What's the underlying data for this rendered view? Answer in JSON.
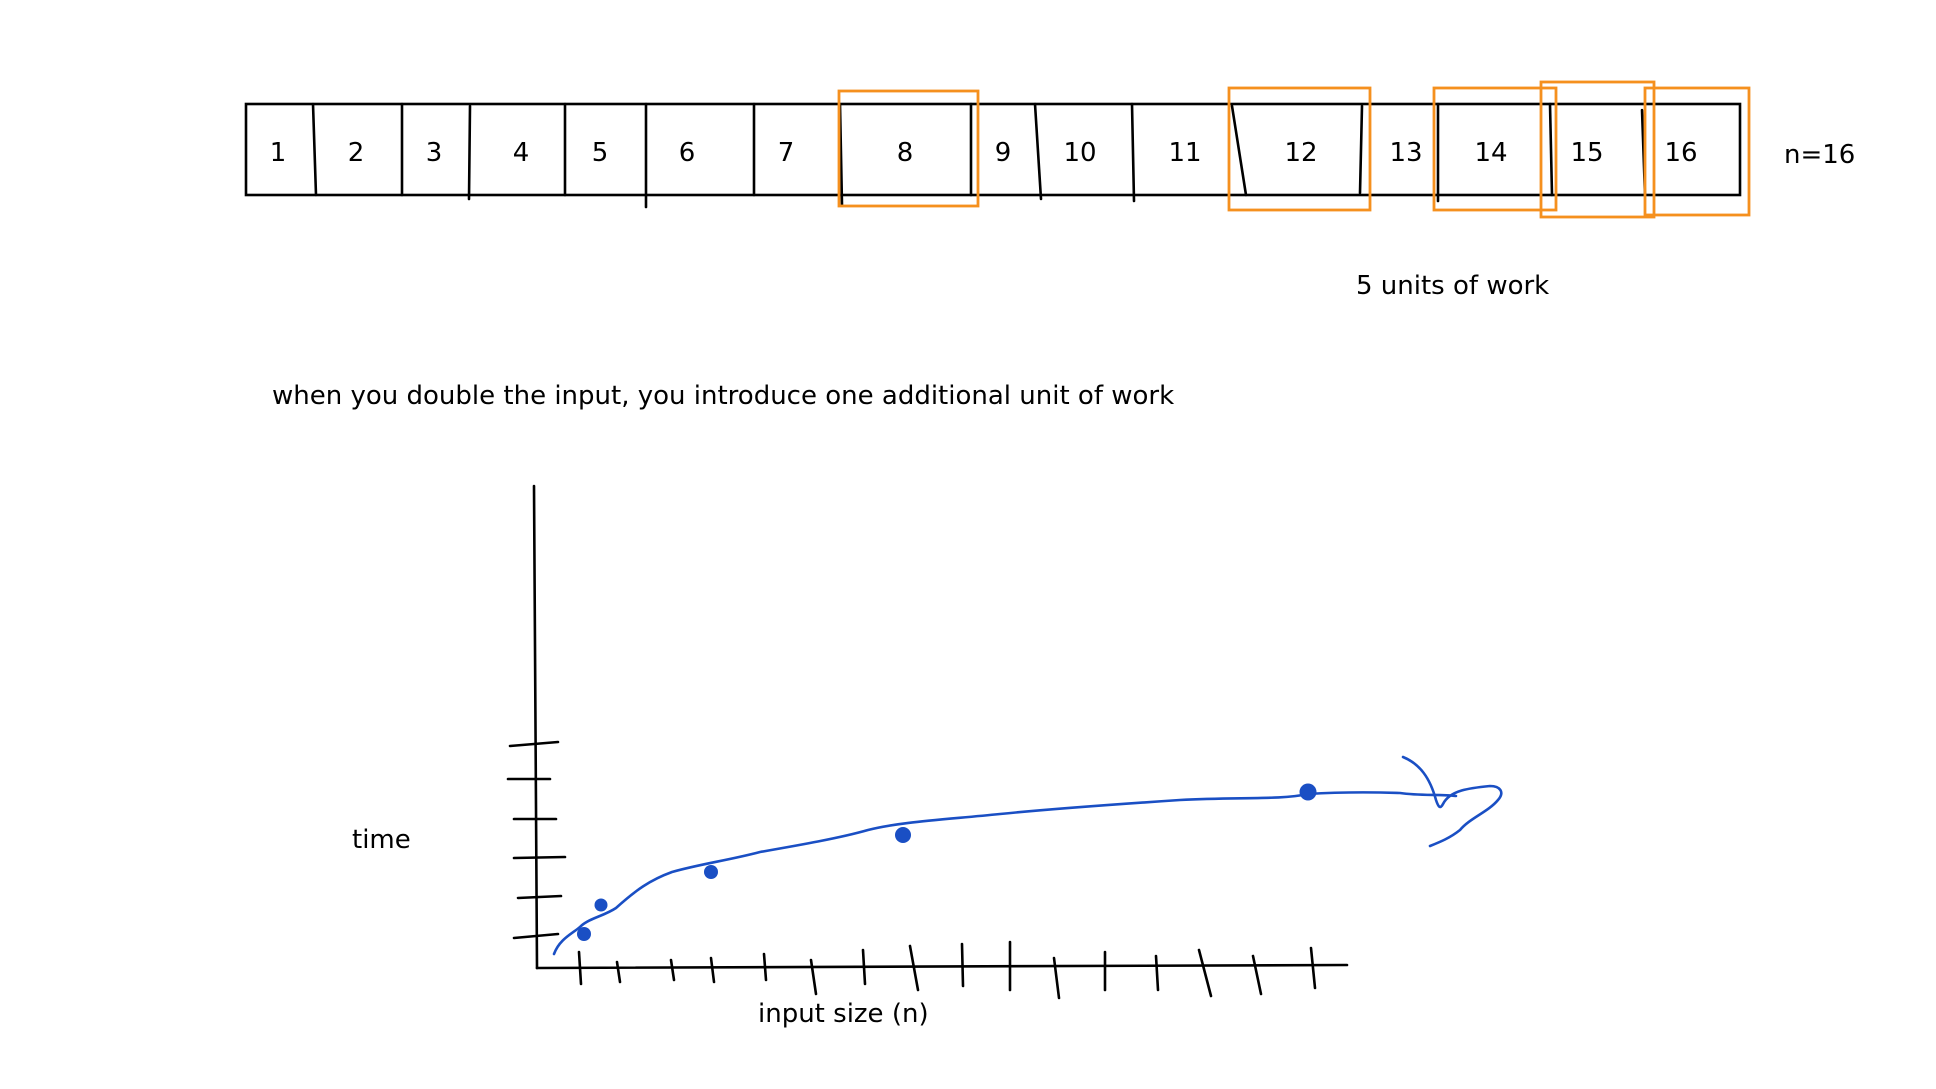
{
  "array": {
    "cells": [
      "1",
      "2",
      "3",
      "4",
      "5",
      "6",
      "7",
      "8",
      "9",
      "10",
      "11",
      "12",
      "13",
      "14",
      "15",
      "16"
    ],
    "highlighted_cells": [
      "8",
      "12",
      "14",
      "15",
      "16"
    ],
    "size_label": "n=16"
  },
  "work_label": "5 units of work",
  "explanation": "when you double the input, you introduce one additional unit of work",
  "graph": {
    "y_label": "time",
    "x_label": "input size (n)",
    "point_count": 5,
    "curve_shape": "logarithmic"
  },
  "colors": {
    "ink": "#000000",
    "highlight": "#f5901e",
    "curve": "#1a4fc4"
  }
}
